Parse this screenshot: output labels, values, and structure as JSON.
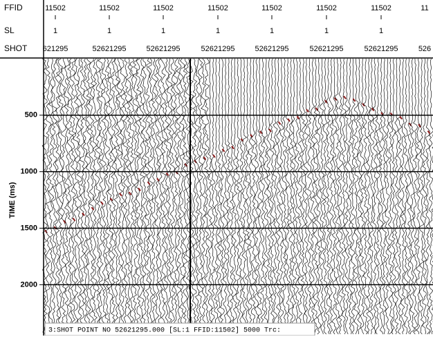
{
  "header": {
    "rows": [
      {
        "label": "FFID",
        "values": [
          "11502",
          "11502",
          "11502",
          "11502",
          "11502",
          "11502",
          "11502",
          "11"
        ]
      },
      {
        "label": "SL",
        "values": [
          "1",
          "1",
          "1",
          "1",
          "1",
          "1",
          "1"
        ]
      },
      {
        "label": "SHOT",
        "values": [
          "621295",
          "52621295",
          "52621295",
          "52621295",
          "52621295",
          "52621295",
          "52621295",
          "526"
        ]
      }
    ]
  },
  "axis": {
    "label": "TIME (ms)",
    "lim": [
      0,
      2450
    ],
    "ticks": [
      500,
      1000,
      1500,
      2000
    ]
  },
  "status": "3:SHOT POINT NO 52621295.000 [SL:1 FFID:11502] 5000 Trc:"
}
